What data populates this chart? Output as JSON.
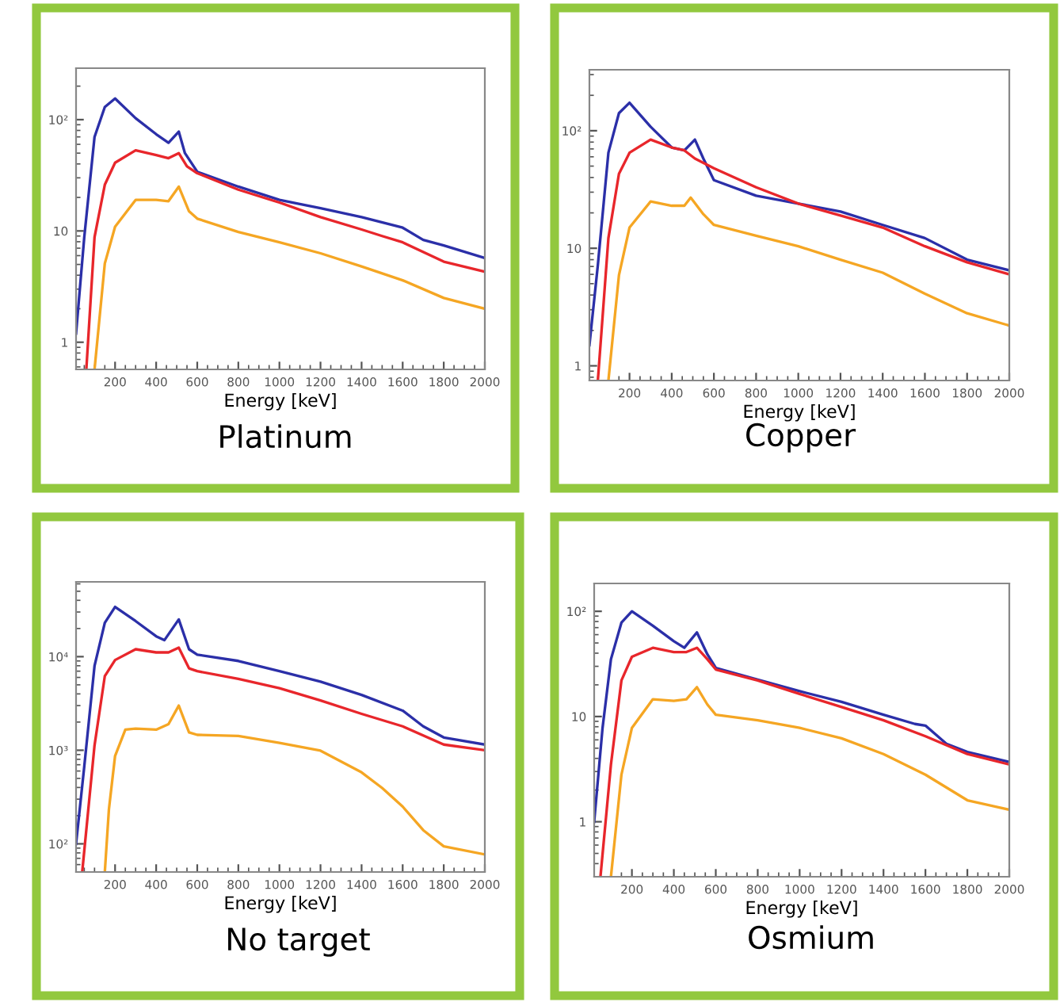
{
  "chart_data": [
    {
      "type": "line",
      "xlabel": "Energy [keV]",
      "annotations": [
        "Platinum"
      ],
      "log": "y",
      "grid": false,
      "legend": false,
      "marker": "none",
      "line_style": "solid",
      "xlim": [
        10,
        2000
      ],
      "xticks": [
        200,
        400,
        600,
        800,
        1000,
        1200,
        1400,
        1600,
        1800,
        2000
      ],
      "ylim": [
        0.57,
        290
      ],
      "yticks": [
        1,
        10,
        {
          "value": 100,
          "label": "10²"
        }
      ],
      "series": [
        {
          "color": "#2b2fa8",
          "x": [
            10,
            50,
            100,
            150,
            200,
            300,
            400,
            460,
            510,
            540,
            600,
            800,
            1000,
            1200,
            1400,
            1600,
            1700,
            1800,
            2000
          ],
          "values": [
            1.2,
            8.8,
            70,
            130,
            155,
            103,
            74,
            62,
            78,
            50,
            34,
            25,
            19,
            16,
            13.3,
            10.7,
            8.3,
            7.4,
            5.7
          ]
        },
        {
          "color": "#e8262b",
          "x": [
            60,
            100,
            150,
            200,
            300,
            400,
            460,
            510,
            550,
            600,
            800,
            1000,
            1200,
            1400,
            1500,
            1600,
            1800,
            2000
          ],
          "values": [
            0.57,
            8.8,
            26,
            41,
            53,
            48,
            45,
            50,
            38,
            33,
            23.5,
            18,
            13.3,
            10.3,
            9,
            7.9,
            5.3,
            4.3
          ]
        },
        {
          "color": "#f5a623",
          "x": [
            100,
            150,
            200,
            300,
            400,
            460,
            510,
            560,
            600,
            800,
            1000,
            1200,
            1400,
            1600,
            1800,
            2000
          ],
          "values": [
            0.57,
            5.1,
            10.9,
            19,
            19,
            18.5,
            25,
            15,
            12.9,
            9.8,
            7.9,
            6.3,
            4.8,
            3.6,
            2.5,
            2.0
          ]
        }
      ]
    },
    {
      "type": "line",
      "xlabel": "Energy [keV]",
      "annotations": [
        "Copper"
      ],
      "log": "y",
      "grid": false,
      "legend": false,
      "marker": "none",
      "line_style": "solid",
      "xlim": [
        10,
        2000
      ],
      "xticks": [
        200,
        400,
        600,
        800,
        1000,
        1200,
        1400,
        1600,
        1800,
        2000
      ],
      "ylim": [
        0.75,
        330
      ],
      "yticks": [
        1,
        10,
        {
          "value": 100,
          "label": "10²"
        }
      ],
      "series": [
        {
          "color": "#2b2fa8",
          "x": [
            10,
            50,
            100,
            150,
            200,
            300,
            400,
            460,
            510,
            550,
            600,
            800,
            1000,
            1200,
            1400,
            1600,
            1800,
            2000
          ],
          "values": [
            1.5,
            7.2,
            65,
            141,
            173,
            108,
            72,
            68,
            84,
            58,
            38,
            28,
            24,
            20.5,
            15.8,
            12.2,
            8,
            6.5
          ]
        },
        {
          "color": "#e8262b",
          "x": [
            50,
            100,
            150,
            200,
            300,
            400,
            460,
            510,
            600,
            800,
            1000,
            1200,
            1400,
            1600,
            1800,
            2000
          ],
          "values": [
            0.75,
            12.2,
            43,
            65,
            84,
            72,
            68,
            58,
            48,
            33,
            24,
            19,
            15,
            10.4,
            7.6,
            6
          ]
        },
        {
          "color": "#f5a623",
          "x": [
            100,
            150,
            200,
            300,
            400,
            460,
            490,
            550,
            600,
            800,
            1000,
            1200,
            1400,
            1600,
            1800,
            2000
          ],
          "values": [
            0.75,
            5.9,
            15,
            25,
            23,
            23,
            27,
            19.5,
            15.8,
            12.8,
            10.4,
            8,
            6.2,
            4.1,
            2.8,
            2.2
          ]
        }
      ]
    },
    {
      "type": "line",
      "xlabel": "Energy [keV]",
      "annotations": [
        "No target"
      ],
      "log": "y",
      "grid": false,
      "legend": false,
      "marker": "none",
      "line_style": "solid",
      "xlim": [
        10,
        2000
      ],
      "xticks": [
        200,
        400,
        600,
        800,
        1000,
        1200,
        1400,
        1600,
        1800,
        2000
      ],
      "ylim": [
        50,
        63000
      ],
      "yticks": [
        {
          "value": 100,
          "label": "10²"
        },
        {
          "value": 1000,
          "label": "10³"
        },
        {
          "value": 10000,
          "label": "10⁴"
        }
      ],
      "series": [
        {
          "color": "#2b2fa8",
          "x": [
            10,
            50,
            100,
            150,
            200,
            300,
            400,
            440,
            510,
            560,
            600,
            800,
            1000,
            1200,
            1400,
            1600,
            1700,
            1800,
            2000
          ],
          "values": [
            100,
            670,
            8000,
            23000,
            34000,
            24000,
            16500,
            15000,
            25000,
            12000,
            10500,
            9000,
            7000,
            5400,
            3900,
            2650,
            1800,
            1370,
            1150
          ]
        },
        {
          "color": "#e8262b",
          "x": [
            40,
            100,
            150,
            200,
            300,
            400,
            460,
            510,
            560,
            600,
            800,
            1000,
            1200,
            1400,
            1600,
            1800,
            2000
          ],
          "values": [
            50,
            1130,
            6200,
            9200,
            12000,
            11100,
            11100,
            12500,
            7500,
            7000,
            5800,
            4600,
            3400,
            2450,
            1800,
            1150,
            1000
          ]
        },
        {
          "color": "#f5a623",
          "x": [
            150,
            170,
            200,
            250,
            300,
            400,
            460,
            510,
            560,
            600,
            800,
            1000,
            1200,
            1400,
            1500,
            1600,
            1700,
            1800,
            2000
          ],
          "values": [
            50,
            234,
            870,
            1660,
            1700,
            1660,
            1900,
            3000,
            1550,
            1460,
            1420,
            1200,
            990,
            580,
            395,
            250,
            140,
            94,
            77
          ]
        }
      ]
    },
    {
      "type": "line",
      "xlabel": "Energy [keV]",
      "annotations": [
        "Osmium"
      ],
      "log": "y",
      "grid": false,
      "legend": false,
      "marker": "none",
      "line_style": "solid",
      "xlim": [
        20,
        2000
      ],
      "xticks": [
        200,
        400,
        600,
        800,
        1000,
        1200,
        1400,
        1600,
        1800,
        2000
      ],
      "ylim": [
        0.3,
        184
      ],
      "yticks": [
        1,
        10,
        {
          "value": 100,
          "label": "10²"
        }
      ],
      "series": [
        {
          "color": "#2b2fa8",
          "x": [
            20,
            60,
            100,
            150,
            200,
            300,
            400,
            450,
            510,
            560,
            600,
            800,
            1000,
            1200,
            1400,
            1550,
            1600,
            1700,
            1800,
            2000
          ],
          "values": [
            1,
            7.8,
            35,
            78,
            100,
            73,
            52,
            45,
            63,
            39,
            29,
            22.4,
            17.4,
            13.8,
            10.4,
            8.5,
            8.2,
            5.5,
            4.6,
            3.7
          ]
        },
        {
          "color": "#e8262b",
          "x": [
            50,
            100,
            150,
            200,
            300,
            400,
            460,
            510,
            560,
            600,
            800,
            1000,
            1200,
            1400,
            1600,
            1800,
            2000
          ],
          "values": [
            0.3,
            3.5,
            22,
            37,
            45,
            41,
            41,
            45,
            35,
            28,
            22,
            16.4,
            12.3,
            9.2,
            6.5,
            4.4,
            3.5
          ]
        },
        {
          "color": "#f5a623",
          "x": [
            100,
            150,
            200,
            300,
            400,
            460,
            510,
            560,
            600,
            800,
            1000,
            1200,
            1400,
            1600,
            1800,
            2000
          ],
          "values": [
            0.3,
            2.8,
            7.8,
            14.6,
            14.1,
            14.6,
            19,
            13,
            10.4,
            9.2,
            7.8,
            6.2,
            4.4,
            2.8,
            1.6,
            1.3
          ]
        }
      ]
    }
  ]
}
